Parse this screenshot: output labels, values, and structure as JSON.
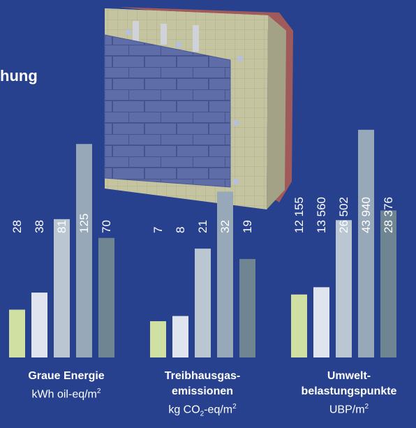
{
  "title_fragment": "hung",
  "colors": {
    "background": "#27418f",
    "series": [
      "#cfe0a2",
      "#dfe4ef",
      "#bac7d3",
      "#97a8b8",
      "#6f8591"
    ],
    "value_label": "#ffffff"
  },
  "chart_data": [
    {
      "type": "bar",
      "title": "Graue Energie",
      "unit_prefix": "kWh oil-eq/m",
      "unit_sup": "2",
      "unit_sub": "",
      "unit_mid": "",
      "values": [
        28,
        38,
        81,
        125,
        70
      ],
      "value_labels": [
        "28",
        "38",
        "81",
        "125",
        "70"
      ],
      "ylim": [
        0,
        130
      ]
    },
    {
      "type": "bar",
      "title": "Treibhausgas-emissionen",
      "title_lines": [
        "Treibhausgas-",
        "emissionen"
      ],
      "unit_prefix": "kg CO",
      "unit_sub": "2",
      "unit_mid": "-eq/m",
      "unit_sup": "2",
      "values": [
        7,
        8,
        21,
        32,
        19
      ],
      "value_labels": [
        "7",
        "8",
        "21",
        "32",
        "19"
      ],
      "ylim": [
        0,
        33
      ]
    },
    {
      "type": "bar",
      "title": "Umwelt-belastungspunkte",
      "title_lines": [
        "Umwelt-",
        "belastungspunkte"
      ],
      "unit_prefix": "UBP/m",
      "unit_sup": "2",
      "unit_sub": "",
      "unit_mid": "",
      "values": [
        12155,
        13560,
        26502,
        43940,
        28376
      ],
      "value_labels": [
        "12 155",
        "13 560",
        "26 502",
        "43 940",
        "28 376"
      ],
      "ylim": [
        0,
        45000
      ]
    }
  ]
}
